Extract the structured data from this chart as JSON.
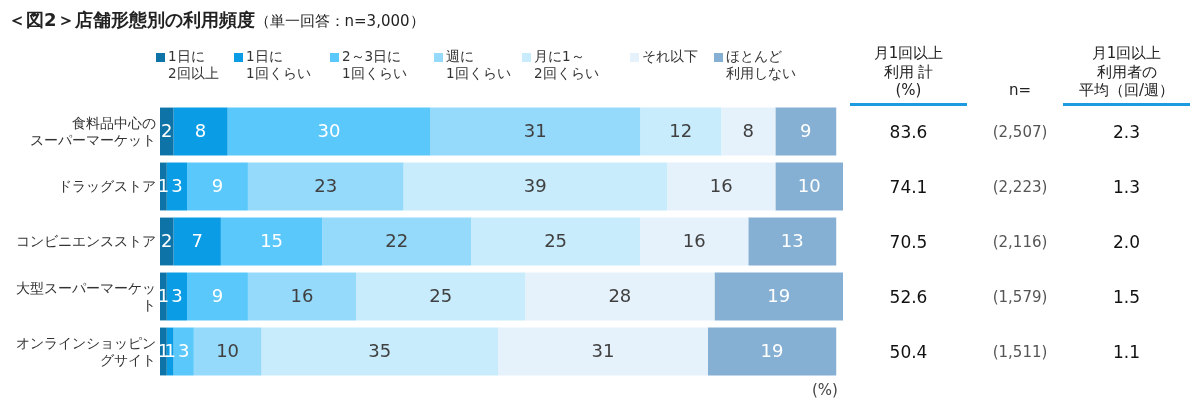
{
  "chart_data": {
    "type": "bar",
    "title": "＜図2＞店舗形態別の利用頻度",
    "subtitle": "（単一回答：n=3,000）",
    "orientation": "horizontal",
    "stacked": true,
    "data_labels": true,
    "grid": false,
    "legend": "top",
    "tick_labels": "y",
    "xlim": [
      0,
      101
    ],
    "categories": [
      "食料品中心のスーパーマーケット",
      "ドラッグストア",
      "コンビニエンスストア",
      "大型スーパーマーケット",
      "オンラインショッピングサイト"
    ],
    "series": [
      {
        "name": "1日に2回以上",
        "color": "#0e74a8",
        "values": [
          2,
          1,
          2,
          1,
          1
        ]
      },
      {
        "name": "1日に1回くらい",
        "color": "#0a9de6",
        "values": [
          8,
          3,
          7,
          3,
          1
        ]
      },
      {
        "name": "2～3日に1回くらい",
        "color": "#5bc8fb",
        "values": [
          30,
          9,
          15,
          9,
          3
        ]
      },
      {
        "name": "週に1回くらい",
        "color": "#95d9fb",
        "values": [
          31,
          23,
          22,
          16,
          10
        ]
      },
      {
        "name": "月に1～2回くらい",
        "color": "#c8ecfc",
        "values": [
          12,
          39,
          25,
          25,
          35
        ]
      },
      {
        "name": "それ以下",
        "color": "#e6f2fb",
        "values": [
          8,
          16,
          16,
          28,
          31
        ]
      },
      {
        "name": "ほとんど利用しない",
        "color": "#86b0d3",
        "values": [
          9,
          10,
          13,
          19,
          19
        ]
      }
    ],
    "annotations": [
      "月1回以上",
      "利用 計",
      "(%)",
      "n=",
      "月1回以上",
      "利用者の",
      "平均（回/週）",
      "83.6",
      "(2,507)",
      "2.3",
      "74.1",
      "(2,223)",
      "1.3",
      "70.5",
      "(2,116)",
      "2.0",
      "52.6",
      "(1,579)",
      "1.5",
      "50.4",
      "(1,511)",
      "1.1",
      "(%)"
    ]
  }
}
